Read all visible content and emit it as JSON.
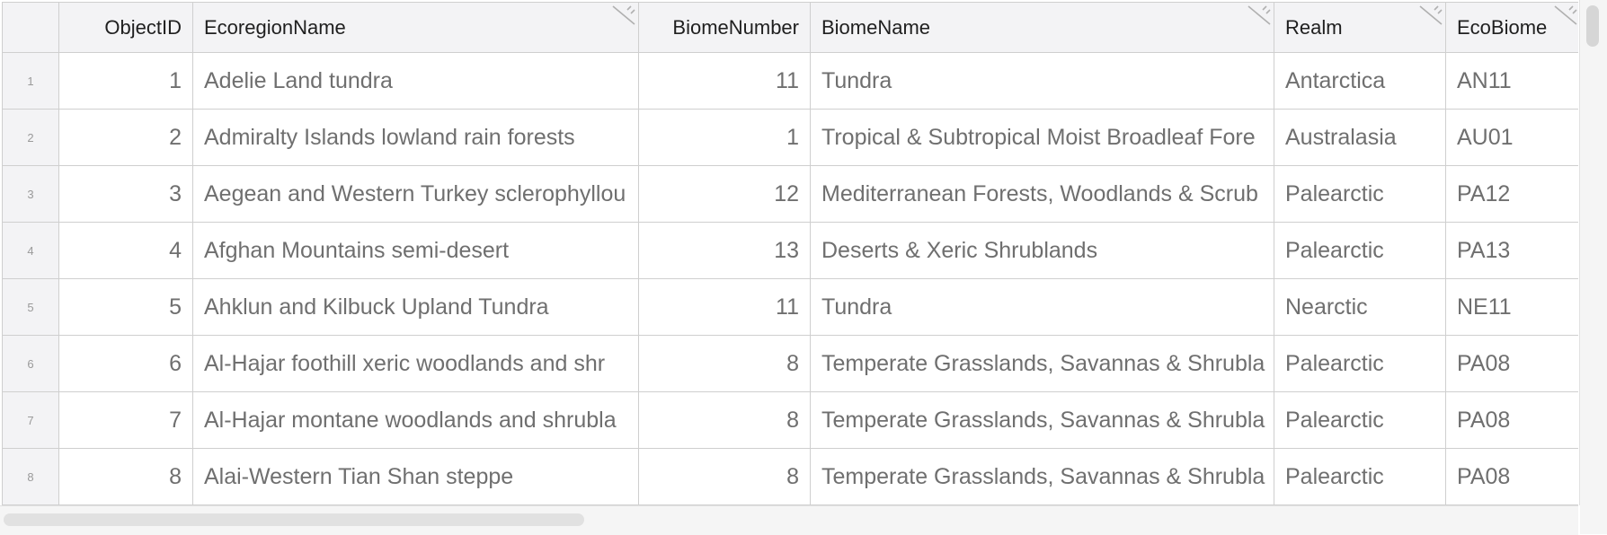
{
  "columns": [
    {
      "label": "ObjectID"
    },
    {
      "label": "EcoregionName"
    },
    {
      "label": "BiomeNumber"
    },
    {
      "label": "BiomeName"
    },
    {
      "label": "Realm"
    },
    {
      "label": "EcoBiome"
    }
  ],
  "rows": [
    {
      "idx": "1",
      "id": "1",
      "eco": "Adelie Land tundra",
      "bnum": "11",
      "bname": "Tundra",
      "realm": "Antarctica",
      "ecobiome": "AN11"
    },
    {
      "idx": "2",
      "id": "2",
      "eco": "Admiralty Islands lowland rain forests",
      "bnum": "1",
      "bname": "Tropical & Subtropical Moist Broadleaf Fore",
      "realm": "Australasia",
      "ecobiome": "AU01"
    },
    {
      "idx": "3",
      "id": "3",
      "eco": "Aegean and Western Turkey sclerophyllou",
      "bnum": "12",
      "bname": "Mediterranean Forests, Woodlands & Scrub",
      "realm": "Palearctic",
      "ecobiome": "PA12"
    },
    {
      "idx": "4",
      "id": "4",
      "eco": "Afghan Mountains semi-desert",
      "bnum": "13",
      "bname": "Deserts & Xeric Shrublands",
      "realm": "Palearctic",
      "ecobiome": "PA13"
    },
    {
      "idx": "5",
      "id": "5",
      "eco": "Ahklun and Kilbuck Upland Tundra",
      "bnum": "11",
      "bname": "Tundra",
      "realm": "Nearctic",
      "ecobiome": "NE11"
    },
    {
      "idx": "6",
      "id": "6",
      "eco": "Al-Hajar foothill xeric woodlands and shr",
      "bnum": "8",
      "bname": "Temperate Grasslands, Savannas & Shrubla",
      "realm": "Palearctic",
      "ecobiome": "PA08"
    },
    {
      "idx": "7",
      "id": "7",
      "eco": "Al-Hajar montane woodlands and shrubla",
      "bnum": "8",
      "bname": "Temperate Grasslands, Savannas & Shrubla",
      "realm": "Palearctic",
      "ecobiome": "PA08"
    },
    {
      "idx": "8",
      "id": "8",
      "eco": "Alai-Western Tian Shan steppe",
      "bnum": "8",
      "bname": "Temperate Grasslands, Savannas & Shrubla",
      "realm": "Palearctic",
      "ecobiome": "PA08"
    }
  ]
}
